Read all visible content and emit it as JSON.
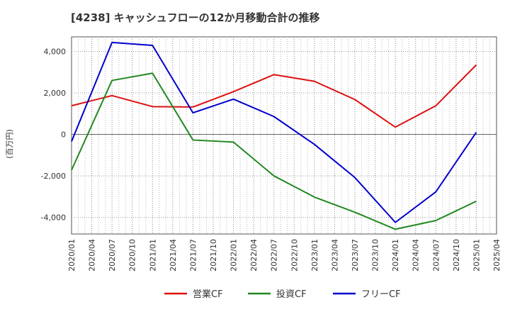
{
  "chart_data": {
    "type": "line",
    "title": "[4238]  キャッシュフローの12か月移動合計の推移",
    "ylabel": "(百万円)",
    "xlabel": "",
    "categories": [
      "2020/01",
      "2020/04",
      "2020/07",
      "2020/10",
      "2021/01",
      "2021/04",
      "2021/07",
      "2021/10",
      "2022/01",
      "2022/04",
      "2022/07",
      "2022/10",
      "2023/01",
      "2023/04",
      "2023/07",
      "2023/10",
      "2024/01",
      "2024/04",
      "2024/07",
      "2024/10",
      "2025/01",
      "2025/04"
    ],
    "yticks": [
      4000,
      2000,
      0,
      -2000,
      -4000
    ],
    "ytick_labels": [
      "4,000",
      "2,000",
      "0",
      "-2,000",
      "-4,000"
    ],
    "ylim": [
      -4800,
      4700
    ],
    "grid": true,
    "legend_position": "bottom",
    "series": [
      {
        "name": "営業CF",
        "color": "#dd1111",
        "points": [
          [
            "2020/01",
            1380
          ],
          [
            "2020/07",
            1870
          ],
          [
            "2021/01",
            1340
          ],
          [
            "2021/07",
            1320
          ],
          [
            "2022/01",
            2060
          ],
          [
            "2022/07",
            2880
          ],
          [
            "2023/01",
            2560
          ],
          [
            "2023/07",
            1680
          ],
          [
            "2024/01",
            350
          ],
          [
            "2024/07",
            1380
          ],
          [
            "2025/01",
            3350
          ]
        ]
      },
      {
        "name": "投資CF",
        "color": "#228822",
        "points": [
          [
            "2020/01",
            -1720
          ],
          [
            "2020/07",
            2600
          ],
          [
            "2021/01",
            2950
          ],
          [
            "2021/07",
            -270
          ],
          [
            "2022/01",
            -370
          ],
          [
            "2022/07",
            -2000
          ],
          [
            "2023/01",
            -3020
          ],
          [
            "2023/07",
            -3750
          ],
          [
            "2024/01",
            -4570
          ],
          [
            "2024/07",
            -4150
          ],
          [
            "2025/01",
            -3220
          ]
        ]
      },
      {
        "name": "フリーCF",
        "color": "#0000cc",
        "points": [
          [
            "2020/01",
            -340
          ],
          [
            "2020/07",
            4430
          ],
          [
            "2021/01",
            4290
          ],
          [
            "2021/07",
            1040
          ],
          [
            "2022/01",
            1700
          ],
          [
            "2022/07",
            860
          ],
          [
            "2023/01",
            -480
          ],
          [
            "2023/07",
            -2080
          ],
          [
            "2024/01",
            -4240
          ],
          [
            "2024/07",
            -2770
          ],
          [
            "2025/01",
            100
          ]
        ]
      }
    ]
  }
}
